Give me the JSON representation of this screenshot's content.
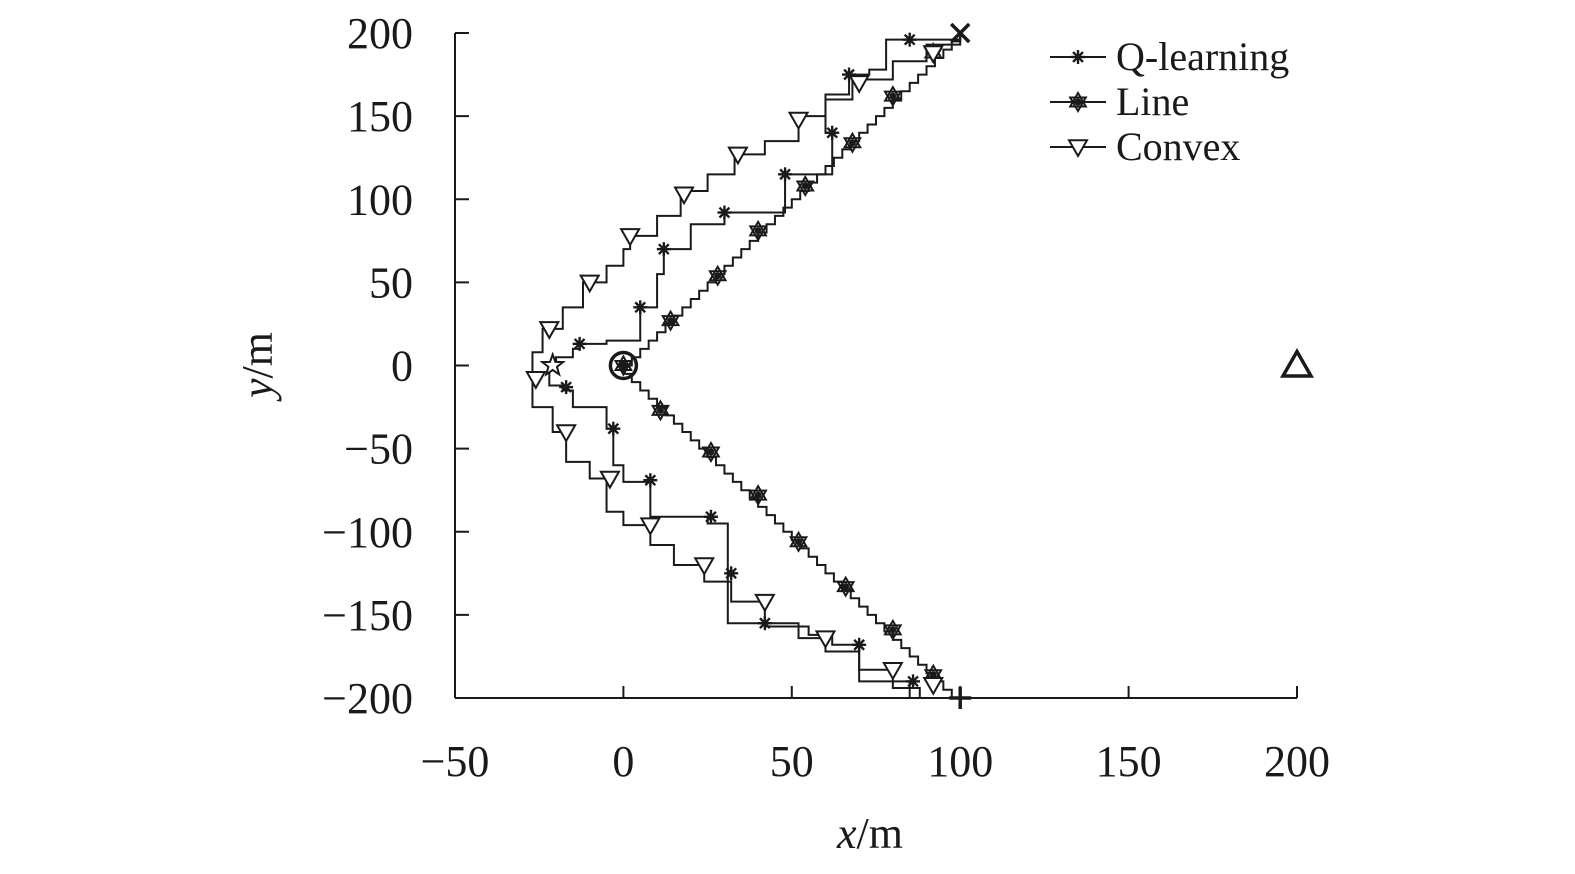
{
  "chart_data": {
    "type": "line",
    "title": "",
    "xlabel": {
      "var": "x",
      "unit": "/m"
    },
    "ylabel": {
      "var": "y",
      "unit": "/m"
    },
    "xlim": [
      -50,
      200
    ],
    "ylim": [
      -200,
      200
    ],
    "xticks": [
      -50,
      0,
      50,
      100,
      150,
      200
    ],
    "yticks": [
      -200,
      -150,
      -100,
      -50,
      0,
      50,
      100,
      150,
      200
    ],
    "xtick_labels": [
      "−50",
      "0",
      "50",
      "100",
      "150",
      "200"
    ],
    "ytick_labels": [
      "−200",
      "−150",
      "−100",
      "−50",
      "0",
      "50",
      "100",
      "150",
      "200"
    ],
    "grid": false,
    "legend_position": "top-right",
    "series": [
      {
        "name": "Q-learning",
        "marker": "asterisk",
        "points": [
          [
            100,
            -200
          ],
          [
            85,
            -190
          ],
          [
            70,
            -168
          ],
          [
            62,
            -162
          ],
          [
            55,
            -157
          ],
          [
            42,
            -155
          ],
          [
            31,
            -125
          ],
          [
            31,
            -95
          ],
          [
            25,
            -91
          ],
          [
            8,
            -70
          ],
          [
            0,
            -60
          ],
          [
            -3,
            -38
          ],
          [
            -5,
            -25
          ],
          [
            -15,
            -15
          ],
          [
            -18,
            -12
          ],
          [
            -22,
            -2
          ],
          [
            -20,
            5
          ],
          [
            -15,
            10
          ],
          [
            -13,
            13
          ],
          [
            -5,
            15
          ],
          [
            5,
            35
          ],
          [
            10,
            55
          ],
          [
            12,
            70
          ],
          [
            20,
            85
          ],
          [
            30,
            92
          ],
          [
            48,
            110
          ],
          [
            48,
            115
          ],
          [
            62,
            120
          ],
          [
            62,
            140
          ],
          [
            60,
            163
          ],
          [
            67,
            175
          ],
          [
            73,
            178
          ],
          [
            78,
            196
          ],
          [
            85,
            196
          ],
          [
            100,
            200
          ]
        ],
        "marked": [
          [
            -13,
            13
          ],
          [
            5,
            35
          ],
          [
            12,
            70
          ],
          [
            30,
            92
          ],
          [
            48,
            115
          ],
          [
            62,
            140
          ],
          [
            67,
            175
          ],
          [
            85,
            196
          ],
          [
            -17,
            -13
          ],
          [
            -3,
            -38
          ],
          [
            8,
            -69
          ],
          [
            26,
            -91
          ],
          [
            32,
            -125
          ],
          [
            42,
            -155
          ],
          [
            70,
            -168
          ],
          [
            86,
            -190
          ]
        ]
      },
      {
        "name": "Line",
        "marker": "star",
        "points": [
          [
            100,
            -200
          ],
          [
            0,
            0
          ],
          [
            100,
            200
          ]
        ],
        "marked": [
          [
            0,
            0
          ],
          [
            11,
            -27
          ],
          [
            26,
            -52
          ],
          [
            40,
            -78
          ],
          [
            52,
            -106
          ],
          [
            66,
            -133
          ],
          [
            80,
            -159
          ],
          [
            92,
            -186
          ],
          [
            14,
            27
          ],
          [
            28,
            54
          ],
          [
            40,
            81
          ],
          [
            54,
            108
          ],
          [
            68,
            134
          ],
          [
            80,
            162
          ],
          [
            92,
            188
          ]
        ]
      },
      {
        "name": "Convex",
        "marker": "triangle-down",
        "points": [
          [
            100,
            -200
          ],
          [
            88,
            -194
          ],
          [
            80,
            -183
          ],
          [
            70,
            -172
          ],
          [
            60,
            -164
          ],
          [
            52,
            -155
          ],
          [
            42,
            -142
          ],
          [
            32,
            -130
          ],
          [
            24,
            -120
          ],
          [
            15,
            -108
          ],
          [
            8,
            -96
          ],
          [
            0,
            -88
          ],
          [
            -5,
            -68
          ],
          [
            -10,
            -58
          ],
          [
            -17,
            -40
          ],
          [
            -21,
            -25
          ],
          [
            -27,
            -10
          ],
          [
            -27,
            0
          ],
          [
            -27,
            8
          ],
          [
            -24,
            22
          ],
          [
            -18,
            35
          ],
          [
            -12,
            50
          ],
          [
            -5,
            60
          ],
          [
            0,
            70
          ],
          [
            2,
            78
          ],
          [
            10,
            90
          ],
          [
            17,
            105
          ],
          [
            25,
            115
          ],
          [
            33,
            127
          ],
          [
            42,
            135
          ],
          [
            52,
            150
          ],
          [
            60,
            160
          ],
          [
            68,
            172
          ],
          [
            80,
            183
          ],
          [
            90,
            193
          ],
          [
            100,
            200
          ]
        ],
        "marked": [
          [
            -26,
            -8
          ],
          [
            -17,
            -40
          ],
          [
            -4,
            -68
          ],
          [
            8,
            -96
          ],
          [
            24,
            -120
          ],
          [
            42,
            -142
          ],
          [
            60,
            -164
          ],
          [
            80,
            -183
          ],
          [
            92,
            -192
          ],
          [
            -22,
            22
          ],
          [
            -10,
            50
          ],
          [
            2,
            78
          ],
          [
            18,
            103
          ],
          [
            34,
            127
          ],
          [
            52,
            148
          ],
          [
            70,
            170
          ],
          [
            92,
            188
          ]
        ]
      }
    ],
    "special_points": [
      {
        "name": "start",
        "marker": "plus",
        "x": 100,
        "y": -200
      },
      {
        "name": "end",
        "marker": "cross",
        "x": 100,
        "y": 200
      },
      {
        "name": "origin",
        "marker": "circle-dot",
        "x": 0,
        "y": 0
      },
      {
        "name": "convex-apex",
        "marker": "star-open",
        "x": -21,
        "y": 0
      },
      {
        "name": "target",
        "marker": "triangle-up",
        "x": 200,
        "y": 0
      }
    ]
  },
  "colors": {
    "ink": "#1a1a1a",
    "background": "#ffffff"
  }
}
